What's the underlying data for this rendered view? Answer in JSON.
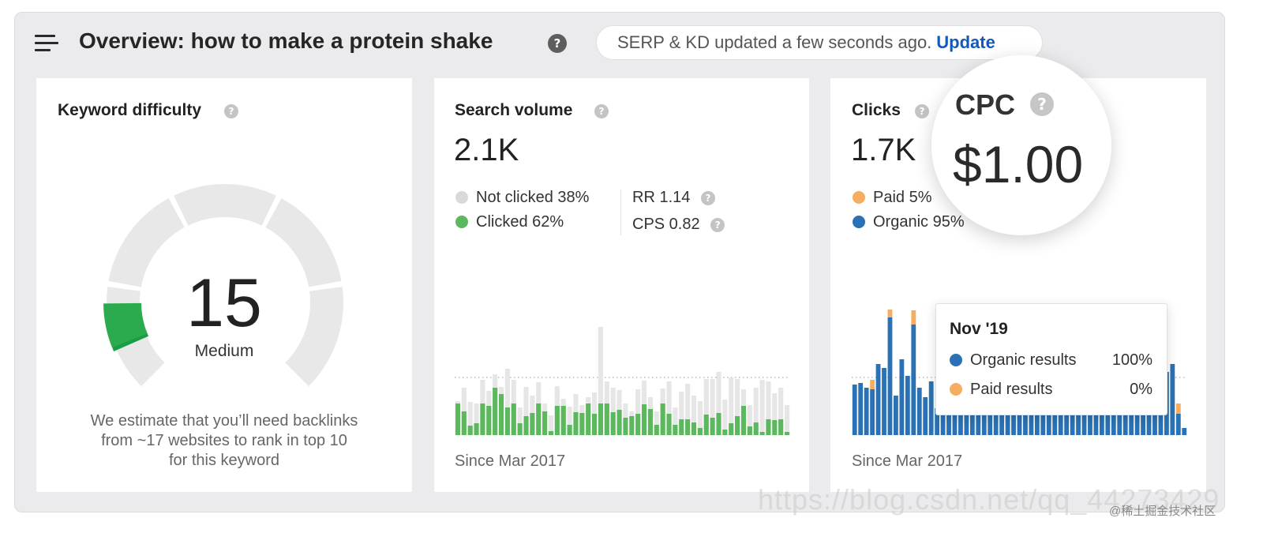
{
  "header": {
    "title": "Overview: how to make a protein shake",
    "help": "?",
    "update_status": "SERP & KD updated a few seconds ago.",
    "update_link": "Update"
  },
  "keyword_difficulty": {
    "title": "Keyword difficulty",
    "help": "?",
    "score": "15",
    "level": "Medium",
    "description_lines": [
      "We estimate that you’ll need backlinks",
      "from ~17 websites to rank in top 10",
      "for this keyword"
    ],
    "fill_fraction": 0.15
  },
  "search_volume": {
    "title": "Search volume",
    "help": "?",
    "value": "2.1K",
    "legend": {
      "not_clicked": "Not clicked 38%",
      "clicked": "Clicked 62%"
    },
    "rr": "RR 1.14",
    "cps": "CPS 0.82",
    "since": "Since Mar 2017"
  },
  "clicks": {
    "title": "Clicks",
    "help": "?",
    "value": "1.7K",
    "legend": {
      "paid": "Paid 5%",
      "organic": "Organic 95%"
    },
    "since": "Since Mar 2017"
  },
  "cpc": {
    "label": "CPC",
    "help": "?",
    "value": "$1.00"
  },
  "tooltip": {
    "title": "Nov '19",
    "rows": [
      {
        "label": "Organic results",
        "value": "100%"
      },
      {
        "label": "Paid results",
        "value": "0%"
      }
    ]
  },
  "colors": {
    "green": "#5cb85c",
    "gray_bar": "#e6e6e6",
    "blue": "#2a72b5",
    "orange": "#f6ad5f",
    "gauge_green": "#1faa4e",
    "gauge_gray": "#e8e8e8",
    "dot_gray": "#d6d6d6"
  },
  "watermark": {
    "text": "https://blog.csdn.net/qq_44273429",
    "tag": "@稀土掘金技术社区"
  },
  "chart_data": [
    {
      "type": "bar",
      "title": "Search volume",
      "xlabel": "Since Mar 2017",
      "series": [
        {
          "name": "Clicked",
          "values": [
            40,
            30,
            12,
            15,
            40,
            37,
            60,
            52,
            35,
            40,
            15,
            24,
            28,
            40,
            30,
            5,
            37,
            37,
            13,
            29,
            28,
            40,
            27,
            40,
            40,
            29,
            32,
            22,
            24,
            27,
            39,
            33,
            13,
            40,
            27,
            13,
            20,
            20,
            16,
            9,
            26,
            22,
            28,
            7,
            15,
            24,
            37,
            11,
            16,
            4,
            20,
            19,
            20,
            4
          ]
        },
        {
          "name": "Not clicked",
          "values": [
            43,
            60,
            42,
            40,
            70,
            56,
            77,
            61,
            84,
            70,
            35,
            61,
            50,
            67,
            40,
            25,
            62,
            46,
            36,
            52,
            38,
            48,
            54,
            137,
            68,
            60,
            57,
            40,
            30,
            58,
            69,
            48,
            30,
            59,
            68,
            35,
            55,
            65,
            50,
            43,
            71,
            71,
            80,
            45,
            73,
            71,
            58,
            38,
            60,
            70,
            68,
            53,
            60,
            38
          ]
        }
      ]
    },
    {
      "type": "bar",
      "title": "Clicks",
      "xlabel": "Since Mar 2017",
      "series": [
        {
          "name": "Organic",
          "values": [
            64,
            66,
            60,
            58,
            90,
            85,
            149,
            50,
            96,
            75,
            140,
            60,
            48,
            68,
            34,
            56,
            96,
            78,
            53,
            100,
            28,
            44,
            60,
            55,
            38,
            38,
            40,
            40,
            40,
            40,
            40,
            40,
            40,
            62,
            67,
            63,
            62,
            68,
            60,
            60,
            60,
            58,
            58,
            60,
            60,
            60,
            60,
            60,
            58,
            56,
            62,
            50,
            56,
            80,
            90,
            27,
            9
          ]
        },
        {
          "name": "Paid",
          "values": [
            0,
            0,
            0,
            12,
            0,
            0,
            10,
            0,
            0,
            0,
            18,
            0,
            0,
            0,
            0,
            0,
            0,
            0,
            0,
            0,
            0,
            0,
            0,
            0,
            0,
            0,
            0,
            0,
            0,
            0,
            0,
            0,
            0,
            0,
            0,
            0,
            0,
            0,
            0,
            0,
            0,
            0,
            0,
            0,
            0,
            0,
            0,
            0,
            0,
            0,
            0,
            8,
            0,
            0,
            0,
            13,
            0
          ]
        }
      ]
    }
  ]
}
